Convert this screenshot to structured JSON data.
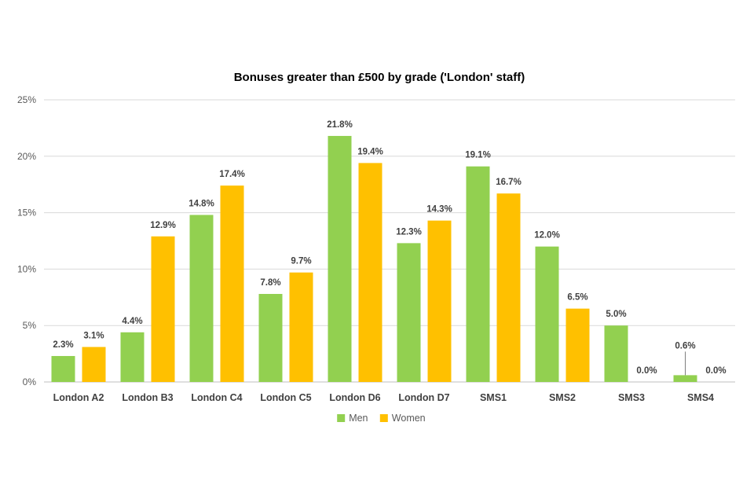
{
  "chart_data": {
    "type": "bar",
    "title": "Bonuses greater than £500 by grade ('London' staff)",
    "xlabel": "",
    "ylabel": "",
    "categories": [
      "London A2",
      "London B3",
      "London C4",
      "London C5",
      "London D6",
      "London D7",
      "SMS1",
      "SMS2",
      "SMS3",
      "SMS4"
    ],
    "series": [
      {
        "name": "Men",
        "color": "#92d050",
        "values": [
          2.3,
          4.4,
          14.8,
          7.8,
          21.8,
          12.3,
          19.1,
          12.0,
          5.0,
          0.6
        ],
        "labels": [
          "2.3%",
          "4.4%",
          "14.8%",
          "7.8%",
          "21.8%",
          "12.3%",
          "19.1%",
          "12.0%",
          "5.0%",
          "0.6%"
        ]
      },
      {
        "name": "Women",
        "color": "#ffc000",
        "values": [
          3.1,
          12.9,
          17.4,
          9.7,
          19.4,
          14.3,
          16.7,
          6.5,
          0.0,
          0.0
        ],
        "labels": [
          "3.1%",
          "12.9%",
          "17.4%",
          "9.7%",
          "19.4%",
          "14.3%",
          "16.7%",
          "6.5%",
          "0.0%",
          "0.0%"
        ]
      }
    ],
    "ylim": [
      0,
      25
    ],
    "yticks": [
      0,
      5,
      10,
      15,
      20,
      25
    ],
    "ytick_labels": [
      "0%",
      "5%",
      "10%",
      "15%",
      "20%",
      "25%"
    ],
    "grid": true,
    "legend_position": "bottom-center"
  }
}
